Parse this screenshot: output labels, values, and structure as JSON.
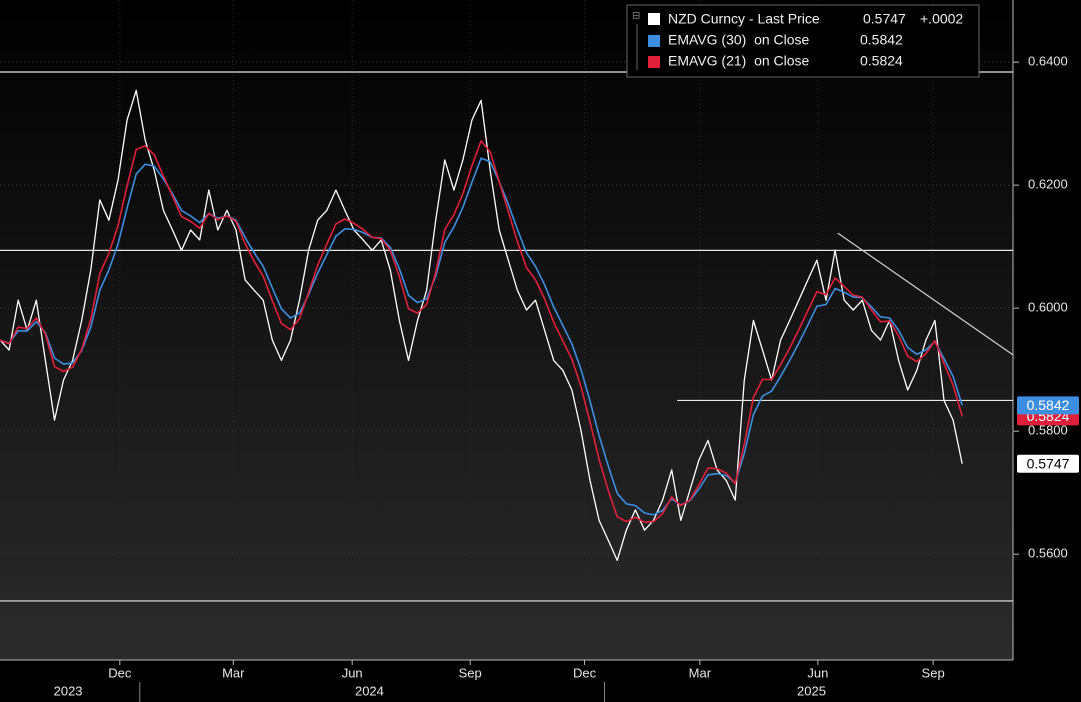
{
  "chart_data": {
    "type": "line",
    "change": "+.0002",
    "series": [
      {
        "name": "NZD Curncy - Last Price",
        "color": "#ffffff",
        "values": [
          0.5948,
          0.5932,
          0.6013,
          0.5964,
          0.6013,
          0.5915,
          0.5818,
          0.5883,
          0.5915,
          0.598,
          0.6062,
          0.6176,
          0.6143,
          0.6208,
          0.6306,
          0.6354,
          0.6273,
          0.6224,
          0.6159,
          0.6127,
          0.6094,
          0.6127,
          0.6111,
          0.6192,
          0.6127,
          0.6159,
          0.6127,
          0.6046,
          0.6029,
          0.6013,
          0.5948,
          0.5915,
          0.5948,
          0.6013,
          0.6094,
          0.6143,
          0.6159,
          0.6192,
          0.6159,
          0.6127,
          0.6111,
          0.6094,
          0.6111,
          0.6062,
          0.598,
          0.5915,
          0.598,
          0.6029,
          0.6143,
          0.6241,
          0.6192,
          0.6241,
          0.6306,
          0.6338,
          0.6224,
          0.6127,
          0.6078,
          0.6029,
          0.5997,
          0.6013,
          0.5964,
          0.5915,
          0.5899,
          0.5867,
          0.5802,
          0.572,
          0.5655,
          0.5623,
          0.559,
          0.5639,
          0.5672,
          0.5639,
          0.5655,
          0.5688,
          0.5737,
          0.5655,
          0.5704,
          0.5753,
          0.5785,
          0.5737,
          0.572,
          0.5688,
          0.5883,
          0.598,
          0.5932,
          0.5883,
          0.5948,
          0.598,
          0.6013,
          0.6046,
          0.6078,
          0.6013,
          0.6094,
          0.6013,
          0.5997,
          0.6013,
          0.5964,
          0.5948,
          0.598,
          0.5915,
          0.5867,
          0.5899,
          0.5948,
          0.598,
          0.585,
          0.5818,
          0.5747
        ]
      },
      {
        "name": "EMAVG (30)  on Close",
        "color": "#3d8ee0",
        "values": [
          0.5948,
          0.5943,
          0.5963,
          0.5963,
          0.5978,
          0.596,
          0.5919,
          0.5909,
          0.5911,
          0.5931,
          0.5969,
          0.6029,
          0.6062,
          0.6104,
          0.6163,
          0.6218,
          0.6234,
          0.6231,
          0.621,
          0.6186,
          0.6159,
          0.615,
          0.6139,
          0.6154,
          0.6146,
          0.615,
          0.6143,
          0.6115,
          0.609,
          0.6068,
          0.6033,
          0.5999,
          0.5984,
          0.5992,
          0.6022,
          0.6057,
          0.6087,
          0.6117,
          0.6129,
          0.6128,
          0.6123,
          0.6115,
          0.6114,
          0.6099,
          0.6064,
          0.6021,
          0.6009,
          0.6015,
          0.6052,
          0.6107,
          0.6132,
          0.6164,
          0.6205,
          0.6244,
          0.6238,
          0.6206,
          0.6169,
          0.6128,
          0.609,
          0.6068,
          0.6038,
          0.6002,
          0.5972,
          0.5942,
          0.5901,
          0.5849,
          0.5793,
          0.5744,
          0.5699,
          0.5682,
          0.5679,
          0.5667,
          0.5664,
          0.5671,
          0.569,
          0.568,
          0.5687,
          0.5706,
          0.5729,
          0.5731,
          0.5728,
          0.5716,
          0.5764,
          0.5827,
          0.5857,
          0.5865,
          0.5889,
          0.5915,
          0.5943,
          0.5973,
          0.6003,
          0.6006,
          0.6032,
          0.6026,
          0.6018,
          0.6017,
          0.6002,
          0.5986,
          0.5984,
          0.5964,
          0.5936,
          0.5925,
          0.5932,
          0.5946,
          0.5918,
          0.5889,
          0.5842
        ]
      },
      {
        "name": "EMAVG (21)  on Close",
        "color": "#e0203a",
        "values": [
          0.5948,
          0.5942,
          0.5969,
          0.5967,
          0.5984,
          0.5958,
          0.5905,
          0.5897,
          0.5904,
          0.5933,
          0.5982,
          0.6056,
          0.6089,
          0.6134,
          0.6199,
          0.6258,
          0.6264,
          0.6249,
          0.6215,
          0.6182,
          0.6149,
          0.6141,
          0.613,
          0.6154,
          0.6144,
          0.615,
          0.6141,
          0.6105,
          0.6076,
          0.6052,
          0.6012,
          0.5975,
          0.5965,
          0.5983,
          0.6025,
          0.607,
          0.6104,
          0.6137,
          0.6145,
          0.6138,
          0.6128,
          0.6115,
          0.6113,
          0.6094,
          0.6051,
          0.5999,
          0.5992,
          0.6006,
          0.6058,
          0.6128,
          0.6152,
          0.6186,
          0.6232,
          0.6272,
          0.6254,
          0.6206,
          0.6157,
          0.6108,
          0.6066,
          0.6046,
          0.6015,
          0.5977,
          0.5947,
          0.5917,
          0.5873,
          0.5815,
          0.5754,
          0.5704,
          0.5661,
          0.5653,
          0.566,
          0.5652,
          0.5653,
          0.5666,
          0.5693,
          0.5679,
          0.5688,
          0.5713,
          0.574,
          0.5739,
          0.5732,
          0.5715,
          0.5779,
          0.5855,
          0.5884,
          0.5884,
          0.5908,
          0.5935,
          0.5965,
          0.5996,
          0.6027,
          0.6022,
          0.6049,
          0.6035,
          0.6021,
          0.6018,
          0.5997,
          0.5978,
          0.5979,
          0.5955,
          0.5922,
          0.5913,
          0.5926,
          0.5947,
          0.591,
          0.5875,
          0.5824
        ]
      }
    ],
    "xlim": [
      0,
      111.6
    ],
    "xticks": [
      {
        "value": 13.2,
        "label": "Dec"
      },
      {
        "value": 25.7,
        "label": "Mar"
      },
      {
        "value": 38.8,
        "label": "Jun"
      },
      {
        "value": 51.8,
        "label": "Sep"
      },
      {
        "value": 64.4,
        "label": "Dec"
      },
      {
        "value": 77.1,
        "label": "Mar"
      },
      {
        "value": 90.1,
        "label": "Jun"
      },
      {
        "value": 102.8,
        "label": "Sep"
      }
    ],
    "year_labels": [
      {
        "value": 7.5,
        "label": "2023"
      },
      {
        "value": 40.7,
        "label": "2024"
      },
      {
        "value": 89.4,
        "label": "2025"
      }
    ],
    "year_breaks": [
      15.4,
      66.6
    ],
    "ylim": [
      0.5428,
      0.6501
    ],
    "yticks": [
      {
        "value": 0.64,
        "label": "0.6400"
      },
      {
        "value": 0.62,
        "label": "0.6200"
      },
      {
        "value": 0.6,
        "label": "0.6000"
      },
      {
        "value": 0.58,
        "label": "0.5800"
      },
      {
        "value": 0.56,
        "label": "0.5600"
      }
    ],
    "hlines": [
      {
        "value": 0.6384,
        "from": 0
      },
      {
        "value": 0.6094,
        "from": 0
      },
      {
        "value": 0.585,
        "from": 74.6
      },
      {
        "value": 0.5524,
        "from": 0
      }
    ],
    "trendline": {
      "x": [
        92.3,
        111.6
      ],
      "y": [
        0.6122,
        0.5924
      ]
    },
    "grid": true
  }
}
